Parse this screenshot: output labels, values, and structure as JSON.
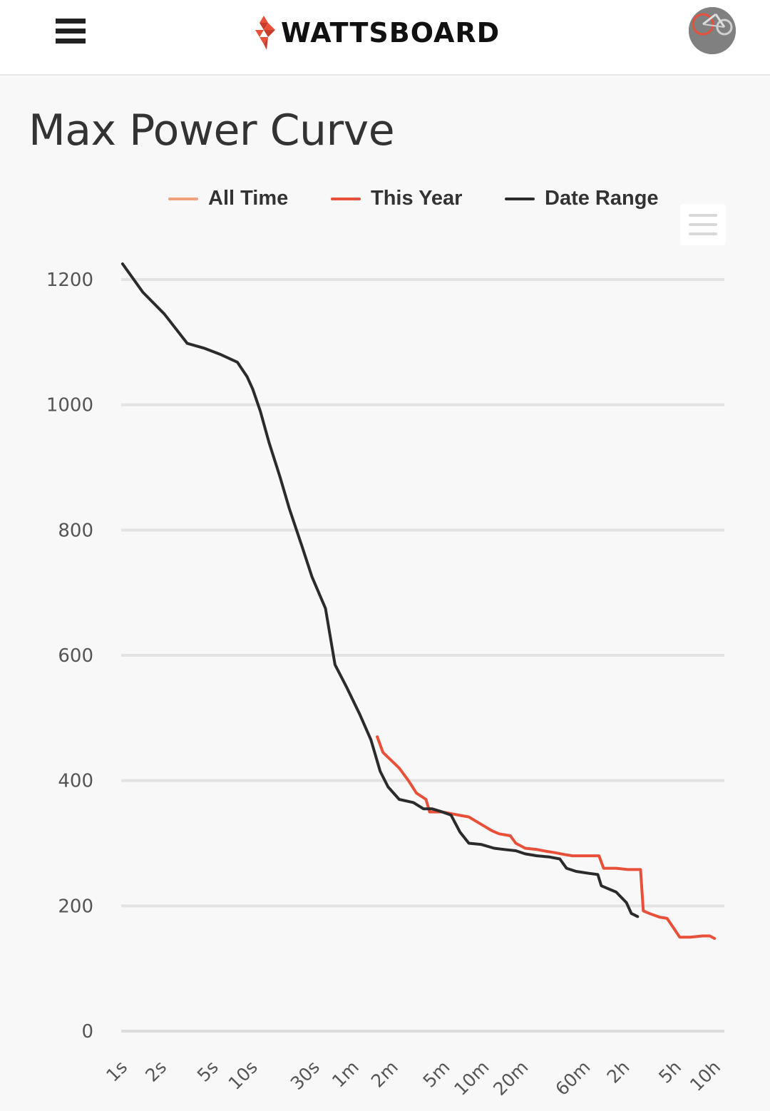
{
  "header": {
    "brand_name": "WATTSBOARD",
    "icons": {
      "menu": "hamburger-menu-icon",
      "logo": "wattsboard-logo-icon",
      "avatar": "user-avatar"
    }
  },
  "page": {
    "title": "Max Power Curve"
  },
  "colors": {
    "all_time": "#f0a27e",
    "this_year": "#e8503a",
    "date_range": "#2b2b2b",
    "grid": "#e3e3e3"
  },
  "chart_data": {
    "type": "line",
    "xscale": "log",
    "y_ticks": [
      0,
      200,
      400,
      600,
      800,
      1000,
      1200
    ],
    "ylim": [
      0,
      1300
    ],
    "x_ticks": [
      {
        "label": "1s",
        "seconds": 1
      },
      {
        "label": "2s",
        "seconds": 2
      },
      {
        "label": "5s",
        "seconds": 5
      },
      {
        "label": "10s",
        "seconds": 10
      },
      {
        "label": "30s",
        "seconds": 30
      },
      {
        "label": "1m",
        "seconds": 60
      },
      {
        "label": "2m",
        "seconds": 120
      },
      {
        "label": "5m",
        "seconds": 300
      },
      {
        "label": "10m",
        "seconds": 600
      },
      {
        "label": "20m",
        "seconds": 1200
      },
      {
        "label": "60m",
        "seconds": 3600
      },
      {
        "label": "2h",
        "seconds": 7200
      },
      {
        "label": "5h",
        "seconds": 18000
      },
      {
        "label": "10h",
        "seconds": 36000
      }
    ],
    "grid": true,
    "legend_position": "top",
    "series": [
      {
        "name": "All Time",
        "color": "#f0a27e",
        "points": []
      },
      {
        "name": "This Year",
        "color": "#e8503a",
        "points": [
          [
            95,
            470
          ],
          [
            105,
            445
          ],
          [
            140,
            420
          ],
          [
            165,
            400
          ],
          [
            190,
            380
          ],
          [
            225,
            370
          ],
          [
            240,
            350
          ],
          [
            300,
            350
          ],
          [
            400,
            345
          ],
          [
            480,
            342
          ],
          [
            600,
            330
          ],
          [
            720,
            320
          ],
          [
            820,
            315
          ],
          [
            1000,
            312
          ],
          [
            1100,
            300
          ],
          [
            1300,
            292
          ],
          [
            1600,
            290
          ],
          [
            1900,
            287
          ],
          [
            2200,
            285
          ],
          [
            2600,
            282
          ],
          [
            3000,
            280
          ],
          [
            3600,
            280
          ],
          [
            4800,
            280
          ],
          [
            5200,
            260
          ],
          [
            6500,
            260
          ],
          [
            8000,
            258
          ],
          [
            10000,
            258
          ],
          [
            10500,
            192
          ],
          [
            12000,
            187
          ],
          [
            14000,
            182
          ],
          [
            16000,
            180
          ],
          [
            20000,
            150
          ],
          [
            24000,
            150
          ],
          [
            30000,
            152
          ],
          [
            34000,
            152
          ],
          [
            37000,
            148
          ]
        ]
      },
      {
        "name": "Date Range",
        "color": "#2b2b2b",
        "points": [
          [
            1.05,
            1225
          ],
          [
            1.5,
            1180
          ],
          [
            2.2,
            1145
          ],
          [
            3.3,
            1098
          ],
          [
            4.5,
            1090
          ],
          [
            6.0,
            1080
          ],
          [
            8.0,
            1068
          ],
          [
            9.5,
            1045
          ],
          [
            10.5,
            1025
          ],
          [
            12,
            990
          ],
          [
            14,
            940
          ],
          [
            17,
            885
          ],
          [
            20,
            835
          ],
          [
            25,
            775
          ],
          [
            30,
            725
          ],
          [
            38,
            675
          ],
          [
            45,
            585
          ],
          [
            55,
            550
          ],
          [
            70,
            505
          ],
          [
            85,
            465
          ],
          [
            100,
            415
          ],
          [
            115,
            390
          ],
          [
            140,
            370
          ],
          [
            180,
            365
          ],
          [
            215,
            355
          ],
          [
            250,
            355
          ],
          [
            300,
            350
          ],
          [
            350,
            345
          ],
          [
            410,
            318
          ],
          [
            480,
            300
          ],
          [
            600,
            298
          ],
          [
            750,
            292
          ],
          [
            900,
            290
          ],
          [
            1100,
            288
          ],
          [
            1300,
            283
          ],
          [
            1600,
            280
          ],
          [
            2000,
            278
          ],
          [
            2400,
            275
          ],
          [
            2700,
            260
          ],
          [
            3200,
            255
          ],
          [
            4000,
            252
          ],
          [
            4700,
            250
          ],
          [
            5000,
            232
          ],
          [
            6500,
            222
          ],
          [
            7800,
            205
          ],
          [
            8500,
            188
          ],
          [
            9500,
            183
          ]
        ]
      }
    ]
  }
}
